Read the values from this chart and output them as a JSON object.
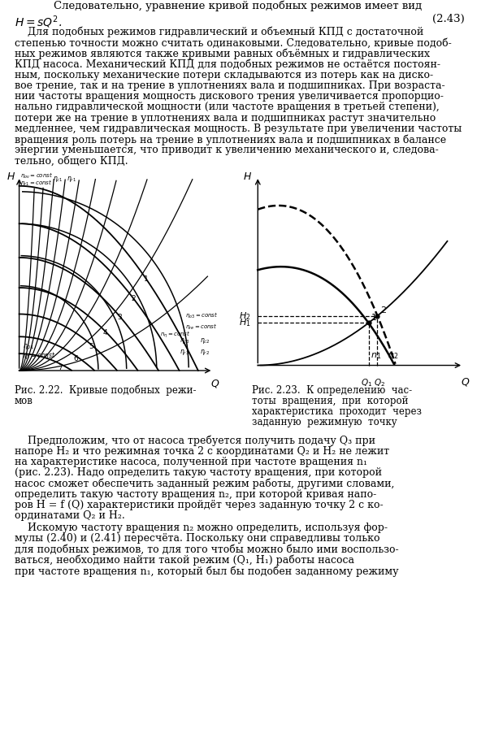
{
  "fig_width": 5.87,
  "fig_height": 9.18,
  "dpi": 100,
  "line1": "Следовательно, уравнение кривой подобных режимов имеет вид",
  "formula": "$H = sQ^2$.",
  "formula_num": "(2.43)",
  "para1": [
    "    Для подобных режимов гидравлический и объемный КПД с достаточной",
    "степенью точности можно считать одинаковыми. Следовательно, кривые подоб-",
    "ных режимов являются также кривыми равных объёмных и гидравлических",
    "КПД насоса. Механический КПД для подобных режимов не остаётся постоян-",
    "ным, поскольку механические потери складываются из потерь как на диско-",
    "вое трение, так и на трение в уплотнениях вала и подшипниках. При возраста-",
    "нии частоты вращения мощность дискового трения увеличивается пропорцио-",
    "нально гидравлической мощности (или частоте вращения в третьей степени),",
    "потери же на трение в уплотнениях вала и подшипниках растут значительно",
    "медленнее, чем гидравлическая мощность. В результате при увеличении частоты",
    "вращения роль потерь на трение в уплотнениях вала и подшипниках в балансе",
    "энергии уменьшается, что приводит к увеличению механического и, следова-",
    "тельно, общего КПД."
  ],
  "cap1_line1": "Рис. 2.22.  Кривые подобных  режи-",
  "cap1_line2": "мов",
  "cap2_line1": "Рис. 2.23.  К определению  час-",
  "cap2_line2": "тоты  вращения,  при  которой",
  "cap2_line3": "характеристика  проходит  через",
  "cap2_line4": "заданную  режимную  точку",
  "para2": [
    "    Предположим, что от насоса требуется получить подачу Q₃ при",
    "напоре H₂ и что режимная точка 2 с координатами Q₂ и H₂ не лежит",
    "на характеристике насоса, полученной при частоте вращения n₁",
    "(рис. 2.23). Надо определить такую частоту вращения, при которой",
    "насос сможет обеспечить заданный режим работы, другими словами,",
    "определить такую частоту вращения n₂, при которой кривая напо-",
    "ров H = f (Q) характеристики пройдёт через заданную точку 2 с ко-",
    "ординатами Q₂ и H₂."
  ],
  "para3": [
    "    Искомую частоту вращения n₂ можно определить, используя фор-",
    "мулы (2.40) и (2.41) пересчёта. Поскольку они справедливы только",
    "для подобных режимов, то для того чтобы можно было ими воспользо-",
    "ваться, необходимо найти такой режим (Q₁, H₁) работы насоса",
    "при частоте вращения n₁, который был бы подобен заданному режиму"
  ]
}
